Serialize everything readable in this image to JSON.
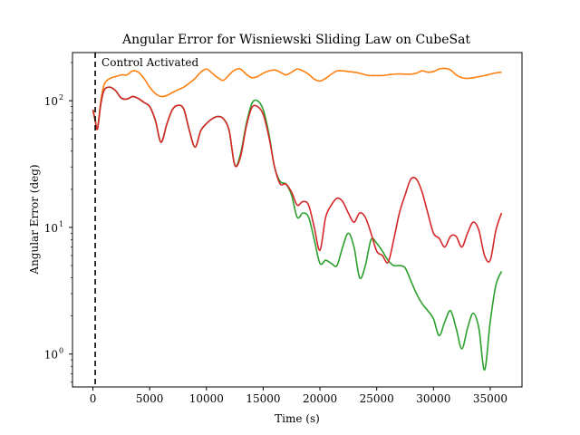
{
  "chart_data": {
    "type": "line",
    "title": "Angular Error for Wisniewski Sliding Law on CubeSat",
    "xlabel": "Time (s)",
    "ylabel": "Angular Error (deg)",
    "xlim": [
      -1800,
      37800
    ],
    "ylim": [
      0.55,
      240
    ],
    "yscale": "log",
    "grid": false,
    "xticks": [
      0,
      5000,
      10000,
      15000,
      20000,
      25000,
      30000,
      35000
    ],
    "xtick_labels": [
      "0",
      "5000",
      "10000",
      "15000",
      "20000",
      "25000",
      "30000",
      "35000"
    ],
    "yticks": [
      1,
      10,
      100
    ],
    "ytick_labels": [
      "10",
      "10",
      "10"
    ],
    "ytick_exponents": [
      "0",
      "1",
      "2"
    ],
    "annotation": {
      "text": "Control Activated",
      "x": 200
    },
    "vline": {
      "x": 200,
      "style": "dashed",
      "color": "#000000"
    },
    "series": [
      {
        "color": "#ff7f0e",
        "points": [
          [
            0,
            85
          ],
          [
            200,
            70
          ],
          [
            400,
            60
          ],
          [
            700,
            100
          ],
          [
            1000,
            135
          ],
          [
            1500,
            150
          ],
          [
            2000,
            155
          ],
          [
            2500,
            160
          ],
          [
            3000,
            160
          ],
          [
            3500,
            172
          ],
          [
            4000,
            168
          ],
          [
            4500,
            150
          ],
          [
            5000,
            128
          ],
          [
            5500,
            114
          ],
          [
            6000,
            108
          ],
          [
            6500,
            110
          ],
          [
            7000,
            116
          ],
          [
            7500,
            122
          ],
          [
            8000,
            128
          ],
          [
            8500,
            138
          ],
          [
            9000,
            150
          ],
          [
            9500,
            168
          ],
          [
            10000,
            178
          ],
          [
            10500,
            165
          ],
          [
            11000,
            152
          ],
          [
            11500,
            145
          ],
          [
            12000,
            160
          ],
          [
            12500,
            175
          ],
          [
            13000,
            178
          ],
          [
            13500,
            162
          ],
          [
            14000,
            152
          ],
          [
            14500,
            155
          ],
          [
            15000,
            165
          ],
          [
            15500,
            172
          ],
          [
            16000,
            175
          ],
          [
            16500,
            168
          ],
          [
            17000,
            160
          ],
          [
            17500,
            168
          ],
          [
            18000,
            178
          ],
          [
            18500,
            172
          ],
          [
            19000,
            162
          ],
          [
            19500,
            148
          ],
          [
            20000,
            143
          ],
          [
            20500,
            150
          ],
          [
            21000,
            162
          ],
          [
            21500,
            172
          ],
          [
            22000,
            172
          ],
          [
            22500,
            170
          ],
          [
            23000,
            168
          ],
          [
            23500,
            165
          ],
          [
            24000,
            160
          ],
          [
            24500,
            158
          ],
          [
            25000,
            158
          ],
          [
            25500,
            158
          ],
          [
            26000,
            160
          ],
          [
            26500,
            162
          ],
          [
            27000,
            163
          ],
          [
            27500,
            162
          ],
          [
            28000,
            162
          ],
          [
            28500,
            165
          ],
          [
            29000,
            172
          ],
          [
            29500,
            168
          ],
          [
            30000,
            170
          ],
          [
            30500,
            178
          ],
          [
            31000,
            180
          ],
          [
            31500,
            175
          ],
          [
            32000,
            160
          ],
          [
            32500,
            152
          ],
          [
            33000,
            150
          ],
          [
            33500,
            152
          ],
          [
            34000,
            155
          ],
          [
            34500,
            158
          ],
          [
            35000,
            162
          ],
          [
            35500,
            166
          ],
          [
            36000,
            168
          ]
        ]
      },
      {
        "color": "#2ca02c",
        "points": [
          [
            0,
            85
          ],
          [
            200,
            70
          ],
          [
            400,
            60
          ],
          [
            700,
            95
          ],
          [
            1000,
            122
          ],
          [
            1500,
            128
          ],
          [
            2000,
            120
          ],
          [
            2500,
            105
          ],
          [
            3000,
            103
          ],
          [
            3500,
            108
          ],
          [
            4000,
            104
          ],
          [
            4500,
            97
          ],
          [
            5000,
            90
          ],
          [
            5500,
            70
          ],
          [
            6000,
            47
          ],
          [
            6500,
            65
          ],
          [
            7000,
            85
          ],
          [
            7500,
            92
          ],
          [
            8000,
            86
          ],
          [
            8500,
            58
          ],
          [
            9000,
            43
          ],
          [
            9500,
            58
          ],
          [
            10000,
            66
          ],
          [
            10500,
            72
          ],
          [
            11000,
            75
          ],
          [
            11500,
            72
          ],
          [
            12000,
            58
          ],
          [
            12500,
            31
          ],
          [
            13000,
            38
          ],
          [
            13500,
            65
          ],
          [
            14000,
            95
          ],
          [
            14500,
            100
          ],
          [
            15000,
            85
          ],
          [
            15500,
            55
          ],
          [
            16000,
            30
          ],
          [
            16500,
            23
          ],
          [
            17000,
            22
          ],
          [
            17500,
            18
          ],
          [
            18000,
            12
          ],
          [
            18500,
            13
          ],
          [
            19000,
            12
          ],
          [
            19500,
            8
          ],
          [
            20000,
            5.2
          ],
          [
            20500,
            5.5
          ],
          [
            21000,
            5.2
          ],
          [
            21500,
            5.0
          ],
          [
            22000,
            7.0
          ],
          [
            22500,
            9.0
          ],
          [
            23000,
            7.0
          ],
          [
            23500,
            4.0
          ],
          [
            24000,
            5.0
          ],
          [
            24500,
            8.0
          ],
          [
            25000,
            7.5
          ],
          [
            25500,
            6.5
          ],
          [
            26000,
            5.5
          ],
          [
            26500,
            5.0
          ],
          [
            27000,
            5.0
          ],
          [
            27500,
            4.8
          ],
          [
            28000,
            3.8
          ],
          [
            28500,
            3.0
          ],
          [
            29000,
            2.5
          ],
          [
            29500,
            2.2
          ],
          [
            30000,
            1.9
          ],
          [
            30500,
            1.4
          ],
          [
            31000,
            1.8
          ],
          [
            31500,
            2.2
          ],
          [
            32000,
            1.6
          ],
          [
            32500,
            1.1
          ],
          [
            33000,
            1.6
          ],
          [
            33500,
            2.1
          ],
          [
            34000,
            1.6
          ],
          [
            34500,
            0.75
          ],
          [
            35000,
            1.8
          ],
          [
            35500,
            3.5
          ],
          [
            36000,
            4.5
          ]
        ]
      },
      {
        "color": "#d62728",
        "points": [
          [
            0,
            85
          ],
          [
            200,
            70
          ],
          [
            400,
            60
          ],
          [
            700,
            95
          ],
          [
            1000,
            122
          ],
          [
            1500,
            128
          ],
          [
            2000,
            120
          ],
          [
            2500,
            105
          ],
          [
            3000,
            103
          ],
          [
            3500,
            108
          ],
          [
            4000,
            104
          ],
          [
            4500,
            97
          ],
          [
            5000,
            90
          ],
          [
            5500,
            70
          ],
          [
            6000,
            47
          ],
          [
            6500,
            65
          ],
          [
            7000,
            85
          ],
          [
            7500,
            92
          ],
          [
            8000,
            86
          ],
          [
            8500,
            58
          ],
          [
            9000,
            43
          ],
          [
            9500,
            58
          ],
          [
            10000,
            66
          ],
          [
            10500,
            72
          ],
          [
            11000,
            75
          ],
          [
            11500,
            72
          ],
          [
            12000,
            58
          ],
          [
            12500,
            31
          ],
          [
            13000,
            36
          ],
          [
            13500,
            62
          ],
          [
            14000,
            88
          ],
          [
            14500,
            90
          ],
          [
            15000,
            78
          ],
          [
            15500,
            52
          ],
          [
            16000,
            30
          ],
          [
            16500,
            22
          ],
          [
            17000,
            22
          ],
          [
            17500,
            19
          ],
          [
            18000,
            15
          ],
          [
            18500,
            16
          ],
          [
            19000,
            15
          ],
          [
            19500,
            10
          ],
          [
            20000,
            6.6
          ],
          [
            20500,
            12
          ],
          [
            21000,
            15
          ],
          [
            21500,
            17
          ],
          [
            22000,
            16
          ],
          [
            22500,
            13
          ],
          [
            23000,
            11
          ],
          [
            23500,
            13
          ],
          [
            24000,
            12
          ],
          [
            24500,
            9
          ],
          [
            25000,
            6.5
          ],
          [
            25500,
            6.0
          ],
          [
            26000,
            5.3
          ],
          [
            26500,
            8
          ],
          [
            27000,
            13
          ],
          [
            27500,
            18
          ],
          [
            28000,
            24
          ],
          [
            28500,
            24
          ],
          [
            29000,
            19
          ],
          [
            29500,
            13
          ],
          [
            30000,
            9.0
          ],
          [
            30500,
            8.2
          ],
          [
            31000,
            7.0
          ],
          [
            31500,
            8.5
          ],
          [
            32000,
            8.5
          ],
          [
            32500,
            7.0
          ],
          [
            33000,
            9.0
          ],
          [
            33500,
            11
          ],
          [
            34000,
            9.5
          ],
          [
            34500,
            6.0
          ],
          [
            35000,
            5.5
          ],
          [
            35500,
            9.5
          ],
          [
            36000,
            13
          ]
        ]
      }
    ]
  }
}
